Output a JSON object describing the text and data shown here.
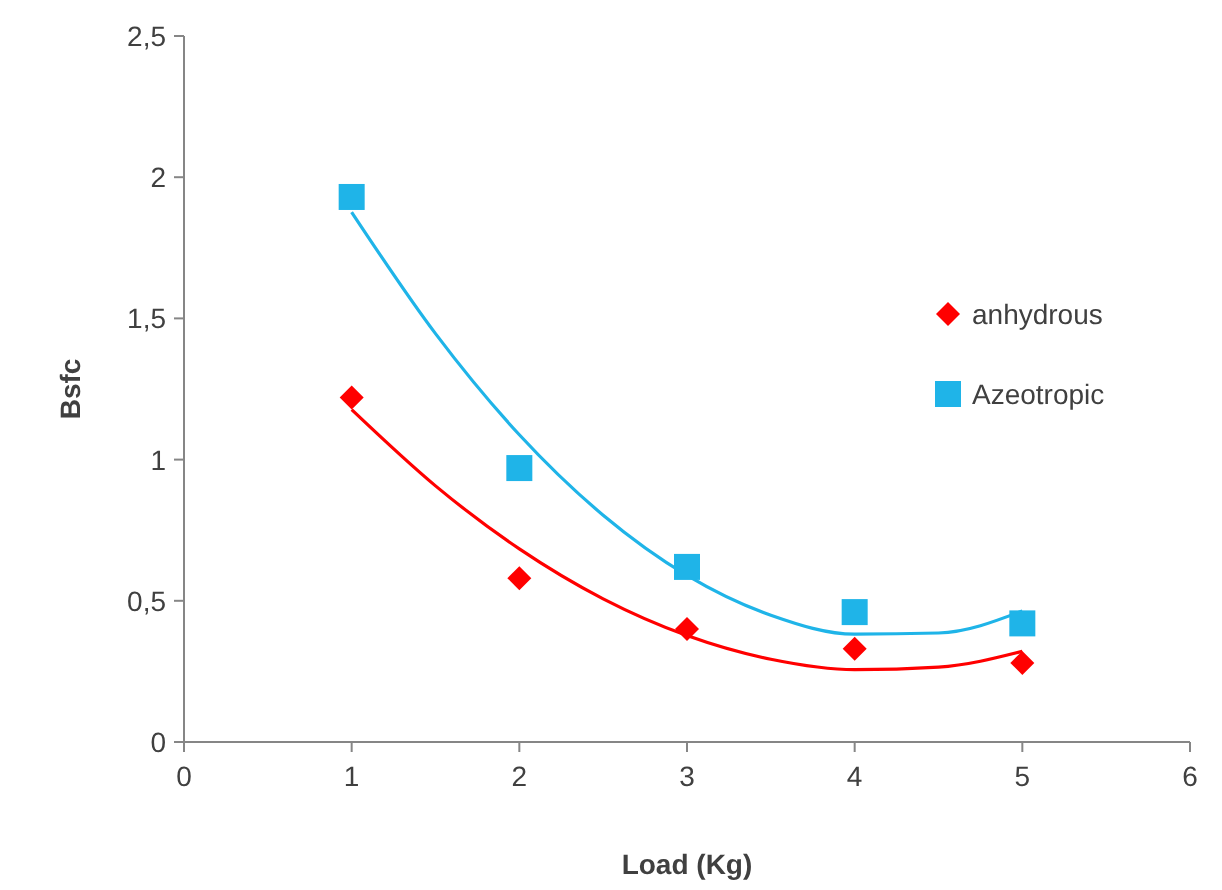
{
  "chart_data": {
    "type": "scatter",
    "xlabel": "Load (Kg)",
    "ylabel": "Bsfc",
    "xlim": [
      0,
      6
    ],
    "ylim": [
      0,
      2.5
    ],
    "xticks": [
      0,
      1,
      2,
      3,
      4,
      5,
      6
    ],
    "yticks": [
      0,
      {
        "value": 0.5,
        "label": "0,5"
      },
      1,
      {
        "value": 1.5,
        "label": "1,5"
      },
      2,
      {
        "value": 2.5,
        "label": "2,5"
      }
    ],
    "grid": false,
    "legend": "right",
    "series": [
      {
        "type": "line",
        "marker": "none",
        "color": "#ff0000",
        "x": [
          1,
          1.5,
          2,
          2.5,
          3,
          3.5,
          4,
          4.5,
          5
        ],
        "values": [
          1.177,
          0.907,
          0.684,
          0.507,
          0.377,
          0.293,
          0.256,
          0.265,
          0.321
        ]
      },
      {
        "type": "line",
        "marker": "none",
        "color": "#1fb4e8",
        "x": [
          1,
          1.5,
          2,
          2.5,
          3,
          3.5,
          4,
          4.5,
          5
        ],
        "values": [
          1.876,
          1.446,
          1.088,
          0.803,
          0.59,
          0.449,
          0.382,
          0.386,
          0.464
        ]
      },
      {
        "name": "anhydrous",
        "marker": "diamond",
        "color": "#ff0000",
        "x": [
          1,
          2,
          3,
          4,
          5
        ],
        "values": [
          1.22,
          0.58,
          0.4,
          0.33,
          0.28
        ]
      },
      {
        "name": "Azeotropic",
        "marker": "square",
        "color": "#1fb4e8",
        "x": [
          1,
          2,
          3,
          4,
          5
        ],
        "values": [
          1.93,
          0.97,
          0.62,
          0.46,
          0.42
        ]
      }
    ]
  }
}
